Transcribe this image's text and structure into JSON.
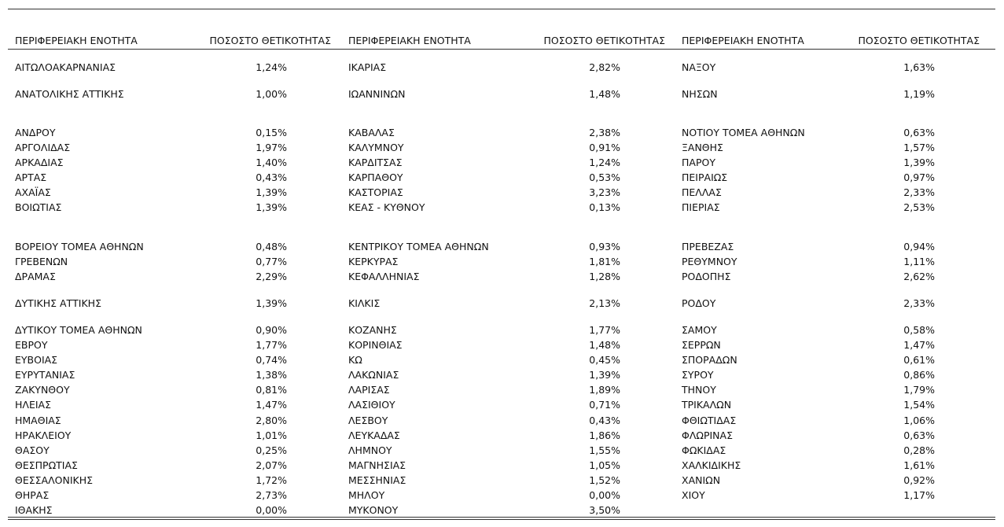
{
  "table": {
    "header": [
      "ΠΕΡΙΦΕΡΕΙΑΚΗ ΕΝΟΤΗΤΑ",
      "ΠΟΣΟΣΤΟ ΘΕΤΙΚΟΤΗΤΑΣ",
      "ΠΕΡΙΦΕΡΕΙΑΚΗ ΕΝΟΤΗΤΑ",
      "ΠΟΣΟΣΤΟ ΘΕΤΙΚΟΤΗΤΑΣ",
      "ΠΕΡΙΦΕΡΕΙΑΚΗ ΕΝΟΤΗΤΑ",
      "ΠΟΣΟΣΤΟ ΘΕΤΙΚΟΤΗΤΑΣ"
    ],
    "rows": [
      [
        "ΑΙΤΩΛΟΑΚΑΡΝΑΝΙΑΣ",
        "1,24%",
        "ΙΚΑΡΙΑΣ",
        "2,82%",
        "ΝΑΞΟΥ",
        "1,63%"
      ],
      [
        "ΑΝΑΤΟΛΙΚΗΣ ΑΤΤΙΚΗΣ",
        "1,00%",
        "ΙΩΑΝΝΙΝΩΝ",
        "1,48%",
        "ΝΗΣΩΝ",
        "1,19%"
      ],
      [
        "ΑΝΔΡΟΥ",
        "0,15%",
        "ΚΑΒΑΛΑΣ",
        "2,38%",
        "ΝΟΤΙΟΥ ΤΟΜΕΑ ΑΘΗΝΩΝ",
        "0,63%"
      ],
      [
        "ΑΡΓΟΛΙΔΑΣ",
        "1,97%",
        "ΚΑΛΥΜΝΟΥ",
        "0,91%",
        "ΞΑΝΘΗΣ",
        "1,57%"
      ],
      [
        "ΑΡΚΑΔΙΑΣ",
        "1,40%",
        "ΚΑΡΔΙΤΣΑΣ",
        "1,24%",
        "ΠΑΡΟΥ",
        "1,39%"
      ],
      [
        "ΑΡΤΑΣ",
        "0,43%",
        "ΚΑΡΠΑΘΟΥ",
        "0,53%",
        "ΠΕΙΡΑΙΩΣ",
        "0,97%"
      ],
      [
        "ΑΧΑΪΑΣ",
        "1,39%",
        "ΚΑΣΤΟΡΙΑΣ",
        "3,23%",
        "ΠΕΛΛΑΣ",
        "2,33%"
      ],
      [
        "ΒΟΙΩΤΙΑΣ",
        "1,39%",
        "ΚΕΑΣ - ΚΥΘΝΟΥ",
        "0,13%",
        "ΠΙΕΡΙΑΣ",
        "2,53%"
      ],
      [
        "ΒΟΡΕΙΟΥ ΤΟΜΕΑ ΑΘΗΝΩΝ",
        "0,48%",
        "ΚΕΝΤΡΙΚΟΥ ΤΟΜΕΑ ΑΘΗΝΩΝ",
        "0,93%",
        "ΠΡΕΒΕΖΑΣ",
        "0,94%"
      ],
      [
        "ΓΡΕΒΕΝΩΝ",
        "0,77%",
        "ΚΕΡΚΥΡΑΣ",
        "1,81%",
        "ΡΕΘΥΜΝΟΥ",
        "1,11%"
      ],
      [
        "ΔΡΑΜΑΣ",
        "2,29%",
        "ΚΕΦΑΛΛΗΝΙΑΣ",
        "1,28%",
        "ΡΟΔΟΠΗΣ",
        "2,62%"
      ],
      [
        "ΔΥΤΙΚΗΣ ΑΤΤΙΚΗΣ",
        "1,39%",
        "ΚΙΛΚΙΣ",
        "2,13%",
        "ΡΟΔΟΥ",
        "2,33%"
      ],
      [
        "ΔΥΤΙΚΟΥ ΤΟΜΕΑ ΑΘΗΝΩΝ",
        "0,90%",
        "ΚΟΖΑΝΗΣ",
        "1,77%",
        "ΣΑΜΟΥ",
        "0,58%"
      ],
      [
        "ΕΒΡΟΥ",
        "1,77%",
        "ΚΟΡΙΝΘΙΑΣ",
        "1,48%",
        "ΣΕΡΡΩΝ",
        "1,47%"
      ],
      [
        "ΕΥΒΟΙΑΣ",
        "0,74%",
        "ΚΩ",
        "0,45%",
        "ΣΠΟΡΑΔΩΝ",
        "0,61%"
      ],
      [
        "ΕΥΡΥΤΑΝΙΑΣ",
        "1,38%",
        "ΛΑΚΩΝΙΑΣ",
        "1,39%",
        "ΣΥΡΟΥ",
        "0,86%"
      ],
      [
        "ΖΑΚΥΝΘΟΥ",
        "0,81%",
        "ΛΑΡΙΣΑΣ",
        "1,89%",
        "ΤΗΝΟΥ",
        "1,79%"
      ],
      [
        "ΗΛΕΙΑΣ",
        "1,47%",
        "ΛΑΣΙΘΙΟΥ",
        "0,71%",
        "ΤΡΙΚΑΛΩΝ",
        "1,54%"
      ],
      [
        "ΗΜΑΘΙΑΣ",
        "2,80%",
        "ΛΕΣΒΟΥ",
        "0,43%",
        "ΦΘΙΩΤΙΔΑΣ",
        "1,06%"
      ],
      [
        "ΗΡΑΚΛΕΙΟΥ",
        "1,01%",
        "ΛΕΥΚΑΔΑΣ",
        "1,86%",
        "ΦΛΩΡΙΝΑΣ",
        "0,63%"
      ],
      [
        "ΘΑΣΟΥ",
        "0,25%",
        "ΛΗΜΝΟΥ",
        "1,55%",
        "ΦΩΚΙΔΑΣ",
        "0,28%"
      ],
      [
        "ΘΕΣΠΡΩΤΙΑΣ",
        "2,07%",
        "ΜΑΓΝΗΣΙΑΣ",
        "1,05%",
        "ΧΑΛΚΙΔΙΚΗΣ",
        "1,61%"
      ],
      [
        "ΘΕΣΣΑΛΟΝΙΚΗΣ",
        "1,72%",
        "ΜΕΣΣΗΝΙΑΣ",
        "1,52%",
        "ΧΑΝΙΩΝ",
        "0,92%"
      ],
      [
        "ΘΗΡΑΣ",
        "2,73%",
        "ΜΗΛΟΥ",
        "0,00%",
        "ΧΙΟΥ",
        "1,17%"
      ],
      [
        "ΙΘΑΚΗΣ",
        "0,00%",
        "ΜΥΚΟΝΟΥ",
        "3,50%"
      ]
    ]
  }
}
